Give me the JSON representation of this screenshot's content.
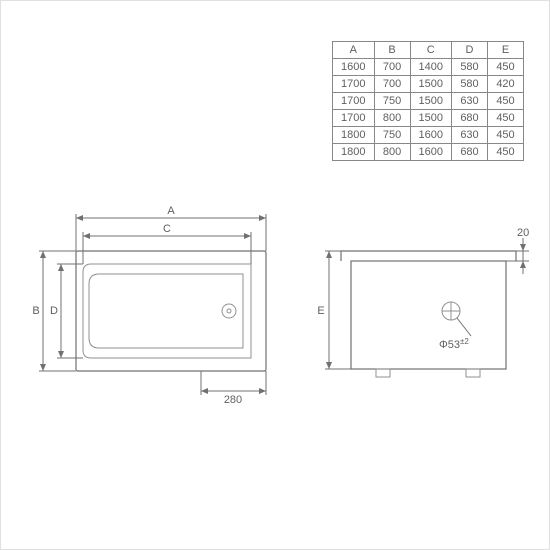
{
  "colors": {
    "line": "#707070",
    "text": "#606060",
    "bg": "#ffffff",
    "border": "#888888"
  },
  "table": {
    "headers": [
      "A",
      "B",
      "C",
      "D",
      "E"
    ],
    "rows": [
      [
        "1600",
        "700",
        "1400",
        "580",
        "450"
      ],
      [
        "1700",
        "700",
        "1500",
        "580",
        "420"
      ],
      [
        "1700",
        "750",
        "1500",
        "630",
        "450"
      ],
      [
        "1700",
        "800",
        "1500",
        "680",
        "450"
      ],
      [
        "1800",
        "750",
        "1600",
        "630",
        "450"
      ],
      [
        "1800",
        "800",
        "1600",
        "680",
        "450"
      ]
    ]
  },
  "topview": {
    "labels": {
      "A": "A",
      "B": "B",
      "C": "C",
      "D": "D",
      "dim280": "280"
    }
  },
  "sideview": {
    "labels": {
      "E": "E",
      "dim20": "20",
      "phi": "Φ53",
      "tol": "±2"
    }
  }
}
